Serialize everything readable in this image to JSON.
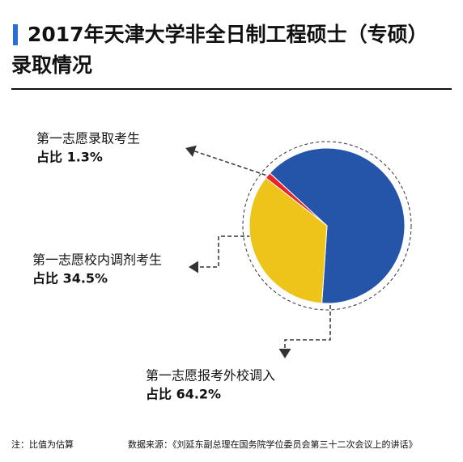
{
  "chart_data": {
    "type": "pie",
    "title": [
      "2017年天津大学非全日制工程硕士（专硕）",
      "录取情况"
    ],
    "categories": [
      "第一志愿录取考生",
      "第一志愿报考外校调入",
      "第一志愿校内调剂考生"
    ],
    "values": [
      1.3,
      64.2,
      34.5
    ],
    "value_labels": [
      "占比 1.3%",
      "占比 64.2%",
      "占比 34.5%"
    ],
    "colors": [
      "#e8262a",
      "#2455a8",
      "#eec41b"
    ],
    "note": "注：比值为估算",
    "source": "数据来源：《刘延东副总理在国务院学位委员会第三十二次会议上的讲话》"
  }
}
